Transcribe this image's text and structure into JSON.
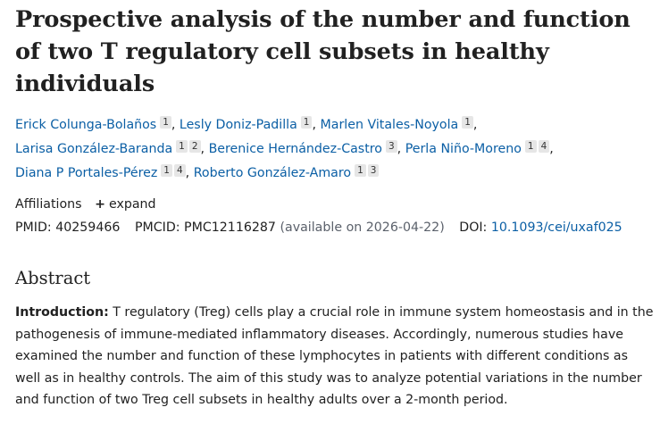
{
  "article": {
    "title": "Prospective analysis of the number and function of two T regulatory cell subsets in healthy individuals"
  },
  "authors": [
    {
      "name": "Erick Colunga-Bolaños",
      "affs": [
        "1"
      ]
    },
    {
      "name": "Lesly Doniz-Padilla",
      "affs": [
        "1"
      ]
    },
    {
      "name": "Marlen Vitales-Noyola",
      "affs": [
        "1"
      ]
    },
    {
      "name": "Larisa González-Baranda",
      "affs": [
        "1",
        "2"
      ]
    },
    {
      "name": "Berenice Hernández-Castro",
      "affs": [
        "3"
      ]
    },
    {
      "name": "Perla Niño-Moreno",
      "affs": [
        "1",
        "4"
      ]
    },
    {
      "name": "Diana P Portales-Pérez",
      "affs": [
        "1",
        "4"
      ]
    },
    {
      "name": "Roberto González-Amaro",
      "affs": [
        "1",
        "3"
      ]
    }
  ],
  "affiliations": {
    "label": "Affiliations",
    "expand_icon": "+",
    "expand_label": "expand"
  },
  "identifiers": {
    "pmid_label": "PMID:",
    "pmid": "40259466",
    "pmcid_label": "PMCID:",
    "pmcid": "PMC12116287",
    "pmcid_note": "(available on 2026-04-22)",
    "doi_label": "DOI:",
    "doi": "10.1093/cei/uxaf025"
  },
  "abstract": {
    "heading": "Abstract",
    "section_label": "Introduction:",
    "text": " T regulatory (Treg) cells play a crucial role in immune system homeostasis and in the pathogenesis of immune-mediated inflammatory diseases. Accordingly, numerous studies have examined the number and function of these lymphocytes in patients with different conditions as well as in healthy controls. The aim of this study was to analyze potential variations in the number and function of two Treg cell subsets in healthy adults over a 2-month period."
  }
}
